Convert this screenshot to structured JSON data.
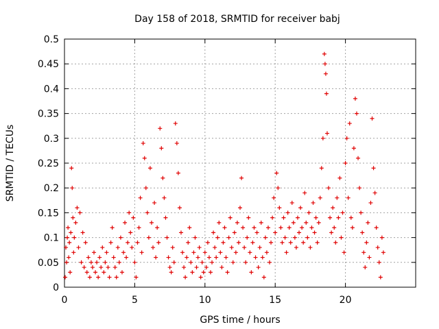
{
  "chart_data": {
    "type": "scatter",
    "title": "Day 158 of 2018, SRMTID for receiver babj",
    "xlabel": "GPS time / hours",
    "ylabel": "SRMTID / TECUs",
    "xlim": [
      0,
      25
    ],
    "ylim": [
      0,
      0.5
    ],
    "grid": true,
    "legend": "none",
    "x_ticks": [
      0,
      5,
      10,
      15,
      20
    ],
    "x_tick_labels": [
      "0",
      "5",
      "10",
      "15",
      "20"
    ],
    "y_ticks": [
      0,
      0.05,
      0.1,
      0.15,
      0.2,
      0.25,
      0.3,
      0.35,
      0.4,
      0.45,
      0.5
    ],
    "y_tick_labels": [
      "0",
      "0.05",
      "0.1",
      "0.15",
      "0.2",
      "0.25",
      "0.3",
      "0.35",
      "0.4",
      "0.45",
      "0.5"
    ],
    "marker": "+",
    "color": "#e00000",
    "series": [
      {
        "name": "SRMTID",
        "points": [
          [
            0.05,
            0.02
          ],
          [
            0.1,
            0.08
          ],
          [
            0.15,
            0.05
          ],
          [
            0.2,
            0.1
          ],
          [
            0.25,
            0.12
          ],
          [
            0.3,
            0.06
          ],
          [
            0.35,
            0.09
          ],
          [
            0.4,
            0.03
          ],
          [
            0.45,
            0.11
          ],
          [
            0.5,
            0.24
          ],
          [
            0.55,
            0.2
          ],
          [
            0.6,
            0.14
          ],
          [
            0.65,
            0.07
          ],
          [
            0.7,
            0.1
          ],
          [
            0.8,
            0.13
          ],
          [
            0.9,
            0.16
          ],
          [
            1.0,
            0.08
          ],
          [
            1.1,
            0.15
          ],
          [
            1.2,
            0.05
          ],
          [
            1.3,
            0.11
          ],
          [
            1.4,
            0.04
          ],
          [
            1.5,
            0.09
          ],
          [
            1.6,
            0.03
          ],
          [
            1.7,
            0.06
          ],
          [
            1.8,
            0.02
          ],
          [
            1.9,
            0.05
          ],
          [
            2.0,
            0.04
          ],
          [
            2.1,
            0.07
          ],
          [
            2.2,
            0.03
          ],
          [
            2.3,
            0.05
          ],
          [
            2.4,
            0.02
          ],
          [
            2.5,
            0.06
          ],
          [
            2.6,
            0.04
          ],
          [
            2.7,
            0.08
          ],
          [
            2.8,
            0.03
          ],
          [
            2.9,
            0.05
          ],
          [
            3.0,
            0.07
          ],
          [
            3.1,
            0.04
          ],
          [
            3.2,
            0.02
          ],
          [
            3.3,
            0.09
          ],
          [
            3.4,
            0.12
          ],
          [
            3.5,
            0.06
          ],
          [
            3.6,
            0.04
          ],
          [
            3.7,
            0.02
          ],
          [
            3.8,
            0.08
          ],
          [
            3.9,
            0.05
          ],
          [
            4.0,
            0.1
          ],
          [
            4.1,
            0.03
          ],
          [
            4.2,
            0.07
          ],
          [
            4.3,
            0.13
          ],
          [
            4.4,
            0.06
          ],
          [
            4.5,
            0.09
          ],
          [
            4.6,
            0.15
          ],
          [
            4.7,
            0.11
          ],
          [
            4.8,
            0.08
          ],
          [
            4.9,
            0.14
          ],
          [
            5.0,
            0.05
          ],
          [
            5.1,
            0.02
          ],
          [
            5.2,
            0.09
          ],
          [
            5.3,
            0.12
          ],
          [
            5.4,
            0.18
          ],
          [
            5.5,
            0.07
          ],
          [
            5.6,
            0.29
          ],
          [
            5.7,
            0.26
          ],
          [
            5.8,
            0.2
          ],
          [
            5.9,
            0.15
          ],
          [
            6.0,
            0.1
          ],
          [
            6.1,
            0.24
          ],
          [
            6.2,
            0.13
          ],
          [
            6.3,
            0.08
          ],
          [
            6.4,
            0.17
          ],
          [
            6.5,
            0.06
          ],
          [
            6.6,
            0.12
          ],
          [
            6.7,
            0.09
          ],
          [
            6.8,
            0.32
          ],
          [
            6.9,
            0.28
          ],
          [
            7.0,
            0.22
          ],
          [
            7.1,
            0.18
          ],
          [
            7.2,
            0.14
          ],
          [
            7.3,
            0.1
          ],
          [
            7.4,
            0.06
          ],
          [
            7.5,
            0.04
          ],
          [
            7.6,
            0.03
          ],
          [
            7.7,
            0.08
          ],
          [
            7.8,
            0.05
          ],
          [
            7.9,
            0.33
          ],
          [
            8.0,
            0.29
          ],
          [
            8.1,
            0.23
          ],
          [
            8.2,
            0.16
          ],
          [
            8.3,
            0.11
          ],
          [
            8.4,
            0.07
          ],
          [
            8.5,
            0.04
          ],
          [
            8.6,
            0.02
          ],
          [
            8.7,
            0.06
          ],
          [
            8.8,
            0.09
          ],
          [
            8.9,
            0.12
          ],
          [
            9.0,
            0.05
          ],
          [
            9.1,
            0.03
          ],
          [
            9.2,
            0.07
          ],
          [
            9.3,
            0.1
          ],
          [
            9.4,
            0.04
          ],
          [
            9.5,
            0.06
          ],
          [
            9.6,
            0.08
          ],
          [
            9.7,
            0.02
          ],
          [
            9.8,
            0.05
          ],
          [
            9.9,
            0.03
          ],
          [
            10.0,
            0.07
          ],
          [
            10.1,
            0.04
          ],
          [
            10.2,
            0.09
          ],
          [
            10.3,
            0.06
          ],
          [
            10.4,
            0.03
          ],
          [
            10.5,
            0.05
          ],
          [
            10.6,
            0.11
          ],
          [
            10.7,
            0.08
          ],
          [
            10.8,
            0.06
          ],
          [
            10.9,
            0.1
          ],
          [
            11.0,
            0.13
          ],
          [
            11.1,
            0.07
          ],
          [
            11.2,
            0.04
          ],
          [
            11.3,
            0.09
          ],
          [
            11.4,
            0.12
          ],
          [
            11.5,
            0.06
          ],
          [
            11.6,
            0.03
          ],
          [
            11.7,
            0.1
          ],
          [
            11.8,
            0.14
          ],
          [
            11.9,
            0.08
          ],
          [
            12.0,
            0.05
          ],
          [
            12.1,
            0.11
          ],
          [
            12.2,
            0.07
          ],
          [
            12.3,
            0.13
          ],
          [
            12.4,
            0.09
          ],
          [
            12.5,
            0.16
          ],
          [
            12.6,
            0.22
          ],
          [
            12.7,
            0.12
          ],
          [
            12.8,
            0.08
          ],
          [
            12.9,
            0.05
          ],
          [
            13.0,
            0.1
          ],
          [
            13.1,
            0.14
          ],
          [
            13.2,
            0.07
          ],
          [
            13.3,
            0.03
          ],
          [
            13.4,
            0.09
          ],
          [
            13.5,
            0.12
          ],
          [
            13.6,
            0.06
          ],
          [
            13.7,
            0.11
          ],
          [
            13.8,
            0.04
          ],
          [
            13.9,
            0.08
          ],
          [
            14.0,
            0.13
          ],
          [
            14.1,
            0.06
          ],
          [
            14.2,
            0.02
          ],
          [
            14.3,
            0.1
          ],
          [
            14.4,
            0.07
          ],
          [
            14.5,
            0.12
          ],
          [
            14.6,
            0.05
          ],
          [
            14.7,
            0.09
          ],
          [
            14.8,
            0.14
          ],
          [
            14.9,
            0.18
          ],
          [
            15.0,
            0.11
          ],
          [
            15.1,
            0.23
          ],
          [
            15.2,
            0.2
          ],
          [
            15.3,
            0.16
          ],
          [
            15.4,
            0.12
          ],
          [
            15.5,
            0.09
          ],
          [
            15.6,
            0.14
          ],
          [
            15.7,
            0.1
          ],
          [
            15.8,
            0.07
          ],
          [
            15.9,
            0.15
          ],
          [
            16.0,
            0.12
          ],
          [
            16.1,
            0.09
          ],
          [
            16.2,
            0.17
          ],
          [
            16.3,
            0.13
          ],
          [
            16.4,
            0.1
          ],
          [
            16.5,
            0.08
          ],
          [
            16.6,
            0.14
          ],
          [
            16.7,
            0.11
          ],
          [
            16.8,
            0.16
          ],
          [
            16.9,
            0.12
          ],
          [
            17.0,
            0.09
          ],
          [
            17.1,
            0.19
          ],
          [
            17.2,
            0.13
          ],
          [
            17.3,
            0.1
          ],
          [
            17.4,
            0.15
          ],
          [
            17.5,
            0.08
          ],
          [
            17.6,
            0.12
          ],
          [
            17.7,
            0.17
          ],
          [
            17.8,
            0.11
          ],
          [
            17.9,
            0.14
          ],
          [
            18.0,
            0.09
          ],
          [
            18.1,
            0.13
          ],
          [
            18.2,
            0.18
          ],
          [
            18.3,
            0.24
          ],
          [
            18.4,
            0.3
          ],
          [
            18.5,
            0.47
          ],
          [
            18.55,
            0.45
          ],
          [
            18.6,
            0.43
          ],
          [
            18.65,
            0.39
          ],
          [
            18.7,
            0.31
          ],
          [
            18.8,
            0.2
          ],
          [
            18.9,
            0.14
          ],
          [
            19.0,
            0.11
          ],
          [
            19.1,
            0.16
          ],
          [
            19.2,
            0.12
          ],
          [
            19.3,
            0.09
          ],
          [
            19.4,
            0.18
          ],
          [
            19.5,
            0.14
          ],
          [
            19.6,
            0.22
          ],
          [
            19.7,
            0.1
          ],
          [
            19.8,
            0.15
          ],
          [
            19.9,
            0.07
          ],
          [
            20.0,
            0.25
          ],
          [
            20.1,
            0.3
          ],
          [
            20.2,
            0.18
          ],
          [
            20.3,
            0.33
          ],
          [
            20.4,
            0.14
          ],
          [
            20.5,
            0.12
          ],
          [
            20.6,
            0.28
          ],
          [
            20.7,
            0.38
          ],
          [
            20.8,
            0.35
          ],
          [
            20.9,
            0.26
          ],
          [
            21.0,
            0.2
          ],
          [
            21.1,
            0.15
          ],
          [
            21.2,
            0.11
          ],
          [
            21.3,
            0.07
          ],
          [
            21.4,
            0.04
          ],
          [
            21.5,
            0.09
          ],
          [
            21.6,
            0.13
          ],
          [
            21.7,
            0.06
          ],
          [
            21.8,
            0.17
          ],
          [
            21.9,
            0.34
          ],
          [
            22.0,
            0.24
          ],
          [
            22.1,
            0.19
          ],
          [
            22.2,
            0.12
          ],
          [
            22.3,
            0.08
          ],
          [
            22.4,
            0.05
          ],
          [
            22.5,
            0.02
          ],
          [
            22.6,
            0.1
          ],
          [
            22.7,
            0.07
          ]
        ]
      }
    ]
  }
}
